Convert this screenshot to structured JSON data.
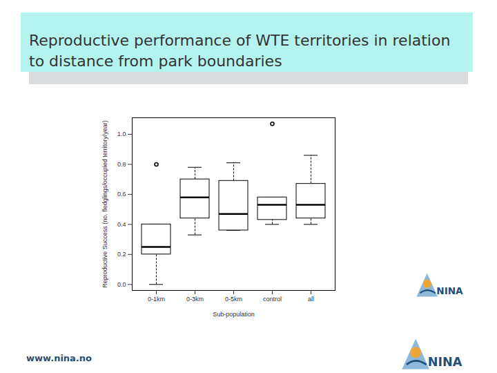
{
  "title": "Reproductive performance of WTE territories in relation to distance from park boundaries",
  "footer": "www.nina.no",
  "logo_text": "NINA",
  "chart_data": {
    "type": "boxplot",
    "categories": [
      "0-1km",
      "0-3km",
      "0-5km",
      "control",
      "all"
    ],
    "min": [
      0.0,
      0.33,
      0.36,
      0.4,
      0.4
    ],
    "q1": [
      0.2,
      0.44,
      0.36,
      0.43,
      0.44
    ],
    "median": [
      0.25,
      0.58,
      0.47,
      0.53,
      0.53
    ],
    "q3": [
      0.4,
      0.7,
      0.69,
      0.58,
      0.67
    ],
    "max": [
      0.4,
      0.78,
      0.81,
      0.58,
      0.86
    ],
    "outliers": [
      [
        0.8
      ],
      [],
      [],
      [
        1.07
      ],
      []
    ],
    "x_label": "Sub-population",
    "y_label": "Reproductive Success (no. fledglings/occupied territory/year)",
    "ylim": [
      -0.04,
      1.11
    ],
    "yticks": [
      {
        "value": 0,
        "label": "0.0"
      },
      {
        "value": 0.2,
        "label": "0.2"
      },
      {
        "value": 0.4,
        "label": "0.4"
      },
      {
        "value": 0.6,
        "label": "0.6"
      },
      {
        "value": 0.8,
        "label": "0.8"
      },
      {
        "value": 1,
        "label": "1.0"
      }
    ]
  }
}
